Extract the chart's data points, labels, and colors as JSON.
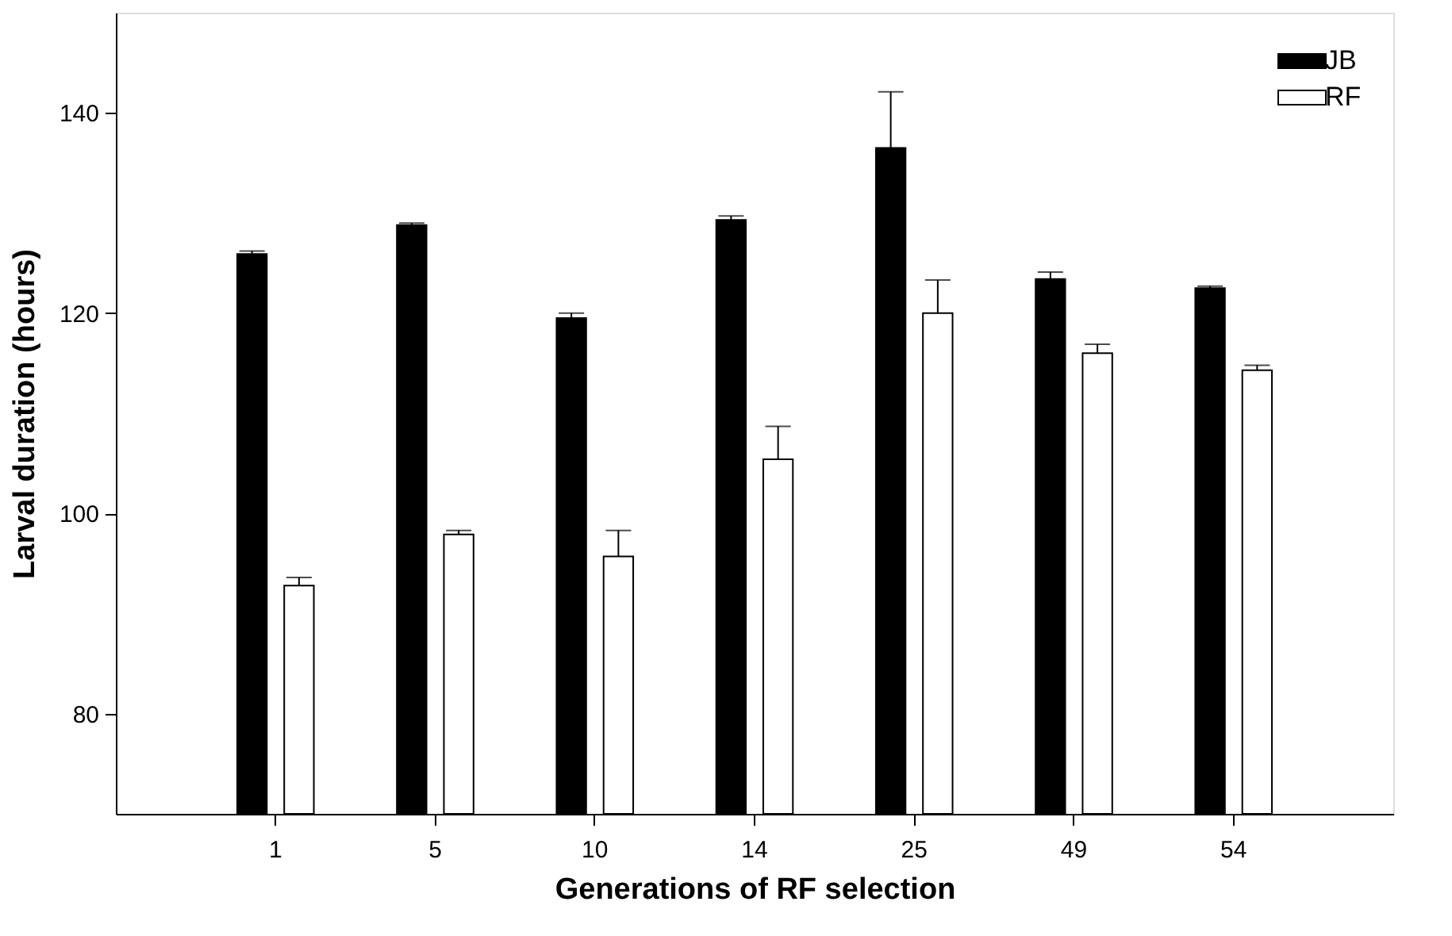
{
  "chart_data": {
    "type": "bar",
    "xlabel": "Generations of RF selection",
    "ylabel": "Larval duration (hours)",
    "categories": [
      "1",
      "5",
      "10",
      "14",
      "25",
      "49",
      "54"
    ],
    "series": [
      {
        "name": "JB",
        "color": "#000000",
        "values": [
          125.9,
          128.8,
          119.5,
          129.3,
          136.5,
          123.4,
          122.5
        ],
        "errors": [
          [
            125.9,
            126.2
          ],
          [
            128.8,
            129.0
          ],
          [
            119.5,
            120.0
          ],
          [
            129.3,
            129.7
          ],
          [
            136.5,
            142.1
          ],
          [
            123.4,
            124.1
          ],
          [
            122.5,
            122.7
          ]
        ]
      },
      {
        "name": "RF",
        "color": "#ffffff",
        "values": [
          92.8,
          97.9,
          95.7,
          105.4,
          120.0,
          116.0,
          114.3
        ],
        "errors": [
          [
            92.8,
            93.6
          ],
          [
            97.9,
            98.3
          ],
          [
            95.7,
            98.3
          ],
          [
            105.4,
            108.7
          ],
          [
            120.0,
            123.3
          ],
          [
            116.0,
            116.9
          ],
          [
            114.3,
            114.8
          ]
        ]
      }
    ],
    "ylim": [
      70,
      150
    ],
    "yticks": [
      80,
      100,
      120,
      140
    ],
    "grid": false,
    "legend": "top right"
  }
}
